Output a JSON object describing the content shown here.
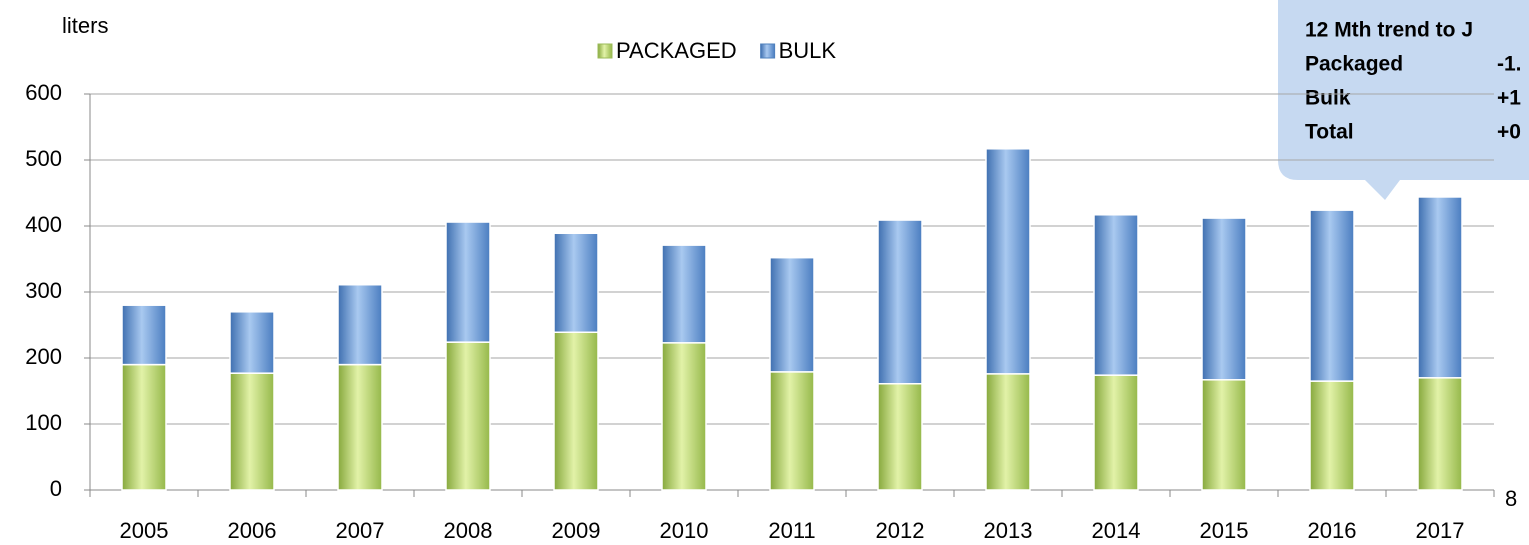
{
  "chart_data": {
    "type": "stacked_bar",
    "y_label": "liters",
    "categories": [
      "2005",
      "2006",
      "2007",
      "2008",
      "2009",
      "2010",
      "2011",
      "2012",
      "2013",
      "2014",
      "2015",
      "2016",
      "2017"
    ],
    "series": [
      {
        "name": "PACKAGED",
        "color": "#9bbb59",
        "values": [
          190,
          177,
          190,
          224,
          239,
          223,
          179,
          161,
          176,
          174,
          167,
          165,
          170
        ]
      },
      {
        "name": "BULK",
        "color": "#4f81bd",
        "values": [
          90,
          93,
          121,
          182,
          150,
          148,
          173,
          248,
          341,
          243,
          245,
          259,
          274
        ]
      }
    ],
    "ylim": [
      0,
      600
    ],
    "yticks": [
      0,
      100,
      200,
      300,
      400,
      500,
      600
    ],
    "grid": true,
    "legend": "top",
    "annotation": {
      "title": "12 Mth trend to J",
      "rows": [
        [
          "Packaged",
          "-1."
        ],
        [
          "Bulk",
          "+1"
        ],
        [
          "Total",
          "+0"
        ]
      ]
    }
  },
  "page_number": "8"
}
